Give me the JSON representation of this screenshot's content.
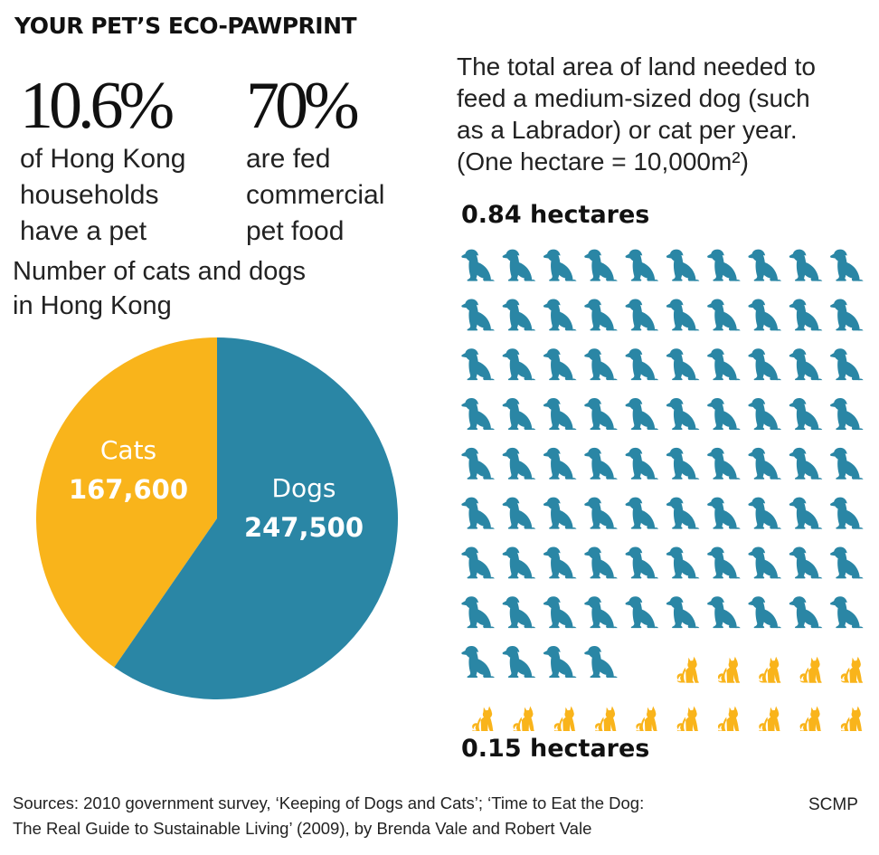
{
  "title": "YOUR PET’S ECO-PAWPRINT",
  "stats": [
    {
      "value": "10.6%",
      "lines": [
        "of Hong Kong",
        "households",
        "have a pet"
      ]
    },
    {
      "value": "70%",
      "lines": [
        "are fed",
        "commercial",
        "pet food"
      ]
    }
  ],
  "pie_title_lines": [
    "Number of cats and dogs",
    "in Hong Kong"
  ],
  "land_description_lines": [
    "The total area of land needed to",
    "feed a medium-sized dog (such",
    "as a Labrador) or cat per year.",
    "(One hectare = 10,000m²)"
  ],
  "sources_lines": [
    "Sources: 2010 government survey, ‘Keeping of Dogs and Cats’; ‘Time to Eat the Dog:",
    "The Real Guide to Sustainable Living’ (2009), by Brenda Vale and Robert Vale"
  ],
  "credit": "SCMP",
  "colors": {
    "dog": "#2a86a5",
    "cat": "#f9b41b",
    "text": "#111111",
    "background": "#ffffff"
  },
  "icons": {
    "dog": "sitting-dog-icon",
    "cat": "sitting-cat-icon"
  },
  "chart_data": [
    {
      "type": "pie",
      "categories": [
        "Cats",
        "Dogs"
      ],
      "values": [
        167600,
        247500
      ],
      "labels": [
        "167,600",
        "247,500"
      ],
      "colors": [
        "#f9b41b",
        "#2a86a5"
      ]
    },
    {
      "type": "pictogram",
      "series": [
        {
          "name": "Dog",
          "value": 0.84,
          "label": "0.84 hectares",
          "icon_count": 84,
          "color": "#2a86a5"
        },
        {
          "name": "Cat",
          "value": 0.15,
          "label": "0.15 hectares",
          "icon_count": 15,
          "color": "#f9b41b"
        }
      ],
      "columns": 10,
      "unit": "hectares"
    }
  ]
}
